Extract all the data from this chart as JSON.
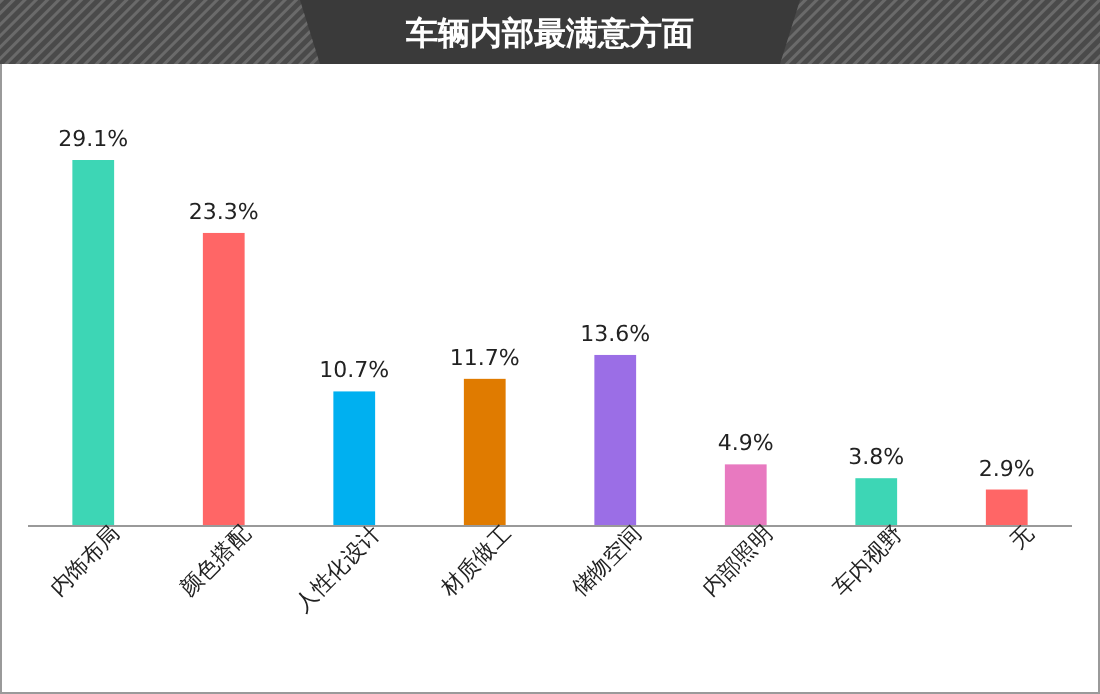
{
  "chart_data": {
    "type": "bar",
    "title": "车辆内部最满意方面",
    "categories": [
      "内饰布局",
      "颜色搭配",
      "人性化设计",
      "材质做工",
      "储物空间",
      "内部照明",
      "车内视野",
      "无"
    ],
    "values": [
      29.1,
      23.3,
      10.7,
      11.7,
      13.6,
      4.9,
      3.8,
      2.9
    ],
    "colors": [
      "#3dd6b5",
      "#ff6666",
      "#00b0f0",
      "#e07b00",
      "#9b6ee6",
      "#e879c0",
      "#3dd6b5",
      "#ff6666"
    ],
    "value_labels": [
      "29.1%",
      "23.3%",
      "10.7%",
      "11.7%",
      "13.6%",
      "4.9%",
      "3.8%",
      "2.9%"
    ],
    "grid": false,
    "legend": false
  }
}
